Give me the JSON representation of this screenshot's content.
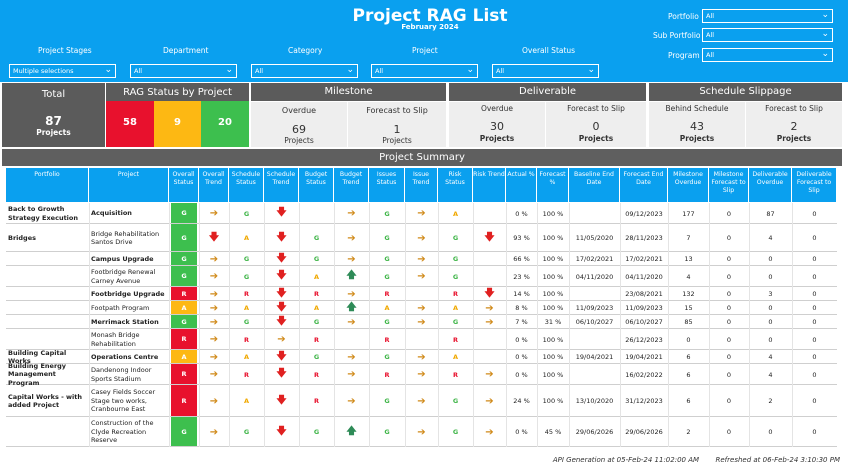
{
  "header": {
    "title": "Project RAG List",
    "subtitle": "February 2024",
    "right_filters": [
      {
        "label": "Portfolio",
        "value": "All"
      },
      {
        "label": "Sub Portfolio",
        "value": "All"
      },
      {
        "label": "Program",
        "value": "All"
      }
    ],
    "filters": [
      {
        "label": "Project Stages",
        "value": "Multiple selections"
      },
      {
        "label": "Department",
        "value": "All"
      },
      {
        "label": "Category",
        "value": "All"
      },
      {
        "label": "Project",
        "value": "All"
      },
      {
        "label": "Overall Status",
        "value": "All"
      }
    ]
  },
  "kpi": {
    "total": {
      "label": "Total",
      "value": "87",
      "sub": "Projects"
    },
    "rag": {
      "label": "RAG Status by Project",
      "red": "58",
      "amber": "9",
      "green": "20",
      "colors": {
        "red": "#e8112d",
        "amber": "#fdb813",
        "green": "#3dbf4e"
      }
    },
    "milestone": {
      "label": "Milestone",
      "a_label": "Overdue",
      "a_value": "69",
      "a_sub": "Projects",
      "b_label": "Forecast to Slip",
      "b_value": "1",
      "b_sub": "Projects"
    },
    "deliverable": {
      "label": "Deliverable",
      "a_label": "Overdue",
      "a_value": "30",
      "a_sub": "Projects",
      "b_label": "Forecast to Slip",
      "b_value": "0",
      "b_sub": "Projects"
    },
    "schedule": {
      "label": "Schedule Slippage",
      "a_label": "Behind Schedule",
      "a_value": "43",
      "a_sub": "Projects",
      "b_label": "Forecast to Slip",
      "b_value": "2",
      "b_sub": "Projects"
    }
  },
  "summary": {
    "title": "Project Summary",
    "columns": [
      "Portfolio",
      "Project",
      "Overall Status",
      "Overall Trend",
      "Schedule Status",
      "Schedule Trend",
      "Budget Status",
      "Budget Trend",
      "Issues Status",
      "Issue Trend",
      "Risk Status",
      "Risk Trend",
      "Actual %",
      "Forecast %",
      "Baseline End Date",
      "Forecast End Date",
      "Milestone Overdue",
      "Milestone Forecast to Slip",
      "Deliverable Overdue",
      "Deliverable Forecast to Slip"
    ],
    "rows": [
      {
        "portfolio": "Back to Growth Strategy Execution",
        "project": "Acquisition",
        "overall": "G",
        "otrend": "right",
        "sched": "G",
        "strend": "down",
        "budget": "",
        "btrend": "right",
        "issues": "G",
        "itrend": "right",
        "risk": "A",
        "rtrend": "",
        "actual": "0 %",
        "forecast": "100 %",
        "baseline": "",
        "fend": "09/12/2023",
        "mo": "177",
        "mf": "0",
        "do": "87",
        "df": "0"
      },
      {
        "portfolio": "Bridges",
        "project": "Bridge Rehabilitation Santos Drive",
        "overall": "G",
        "otrend": "down",
        "sched": "A",
        "strend": "down",
        "budget": "G",
        "btrend": "right",
        "issues": "G",
        "itrend": "right",
        "risk": "G",
        "rtrend": "down",
        "actual": "93 %",
        "forecast": "100 %",
        "baseline": "11/05/2020",
        "fend": "28/11/2023",
        "mo": "7",
        "mf": "0",
        "do": "4",
        "df": "0"
      },
      {
        "portfolio": "",
        "project": "Campus Upgrade",
        "overall": "G",
        "otrend": "right",
        "sched": "G",
        "strend": "down",
        "budget": "G",
        "btrend": "right",
        "issues": "G",
        "itrend": "right",
        "risk": "G",
        "rtrend": "",
        "actual": "66 %",
        "forecast": "100 %",
        "baseline": "17/02/2021",
        "fend": "17/02/2021",
        "mo": "13",
        "mf": "0",
        "do": "0",
        "df": "0"
      },
      {
        "portfolio": "",
        "project": "Footbridge Renewal Carney Avenue",
        "overall": "G",
        "otrend": "right",
        "sched": "G",
        "strend": "down",
        "budget": "A",
        "btrend": "up",
        "issues": "G",
        "itrend": "right",
        "risk": "G",
        "rtrend": "",
        "actual": "23 %",
        "forecast": "100 %",
        "baseline": "04/11/2020",
        "fend": "04/11/2020",
        "mo": "4",
        "mf": "0",
        "do": "0",
        "df": "0"
      },
      {
        "portfolio": "",
        "project": "Footbridge Upgrade",
        "overall": "R",
        "otrend": "right",
        "sched": "R",
        "strend": "down",
        "budget": "R",
        "btrend": "right",
        "issues": "R",
        "itrend": "",
        "risk": "R",
        "rtrend": "down",
        "actual": "14 %",
        "forecast": "100 %",
        "baseline": "",
        "fend": "23/08/2021",
        "mo": "132",
        "mf": "0",
        "do": "3",
        "df": "0"
      },
      {
        "portfolio": "",
        "project": "Footpath Program",
        "overall": "A",
        "otrend": "right",
        "sched": "A",
        "strend": "down",
        "budget": "A",
        "btrend": "up",
        "issues": "A",
        "itrend": "right",
        "risk": "A",
        "rtrend": "right",
        "actual": "8 %",
        "forecast": "100 %",
        "baseline": "11/09/2023",
        "fend": "11/09/2023",
        "mo": "15",
        "mf": "0",
        "do": "0",
        "df": "0"
      },
      {
        "portfolio": "",
        "project": "Merrimack Station",
        "overall": "G",
        "otrend": "right",
        "sched": "G",
        "strend": "down",
        "budget": "G",
        "btrend": "right",
        "issues": "G",
        "itrend": "right",
        "risk": "G",
        "rtrend": "right",
        "actual": "7 %",
        "forecast": "31 %",
        "baseline": "06/10/2027",
        "fend": "06/10/2027",
        "mo": "85",
        "mf": "0",
        "do": "0",
        "df": "0"
      },
      {
        "portfolio": "",
        "project": "Monash Bridge Rehabilitation",
        "overall": "R",
        "otrend": "right",
        "sched": "R",
        "strend": "right",
        "budget": "R",
        "btrend": "",
        "issues": "R",
        "itrend": "",
        "risk": "R",
        "rtrend": "",
        "actual": "0 %",
        "forecast": "100 %",
        "baseline": "",
        "fend": "26/12/2023",
        "mo": "0",
        "mf": "0",
        "do": "0",
        "df": "0"
      },
      {
        "portfolio": "Building Capital Works",
        "project": "Operations Centre",
        "overall": "A",
        "otrend": "right",
        "sched": "A",
        "strend": "down",
        "budget": "G",
        "btrend": "right",
        "issues": "G",
        "itrend": "right",
        "risk": "A",
        "rtrend": "",
        "actual": "0 %",
        "forecast": "100 %",
        "baseline": "19/04/2021",
        "fend": "19/04/2021",
        "mo": "6",
        "mf": "0",
        "do": "4",
        "df": "0"
      },
      {
        "portfolio": "Building Energy Management Program",
        "project": "Dandenong Indoor Sports Stadium",
        "overall": "R",
        "otrend": "right",
        "sched": "R",
        "strend": "down",
        "budget": "R",
        "btrend": "right",
        "issues": "R",
        "itrend": "right",
        "risk": "R",
        "rtrend": "right",
        "actual": "0 %",
        "forecast": "100 %",
        "baseline": "",
        "fend": "16/02/2022",
        "mo": "6",
        "mf": "0",
        "do": "4",
        "df": "0"
      },
      {
        "portfolio": "Capital Works - with added Project",
        "project": "Casey Fields Soccer Stage two works, Cranbourne East",
        "overall": "R",
        "otrend": "right",
        "sched": "A",
        "strend": "down",
        "budget": "R",
        "btrend": "right",
        "issues": "G",
        "itrend": "right",
        "risk": "G",
        "rtrend": "right",
        "actual": "24 %",
        "forecast": "100 %",
        "baseline": "13/10/2020",
        "fend": "31/12/2023",
        "mo": "6",
        "mf": "0",
        "do": "2",
        "df": "0"
      },
      {
        "portfolio": "",
        "project": "Construction of the Clyde Recreation Reserve",
        "overall": "G",
        "otrend": "right",
        "sched": "G",
        "strend": "down",
        "budget": "G",
        "btrend": "up",
        "issues": "G",
        "itrend": "right",
        "risk": "G",
        "rtrend": "right",
        "actual": "0 %",
        "forecast": "45 %",
        "baseline": "29/06/2026",
        "fend": "29/06/2026",
        "mo": "2",
        "mf": "0",
        "do": "0",
        "df": "0"
      }
    ]
  },
  "footer": {
    "api": "API Generation at  05-Feb-24 11:02:00 AM",
    "refreshed": "Refreshed at  06-Feb-24 3:10:30 PM"
  }
}
